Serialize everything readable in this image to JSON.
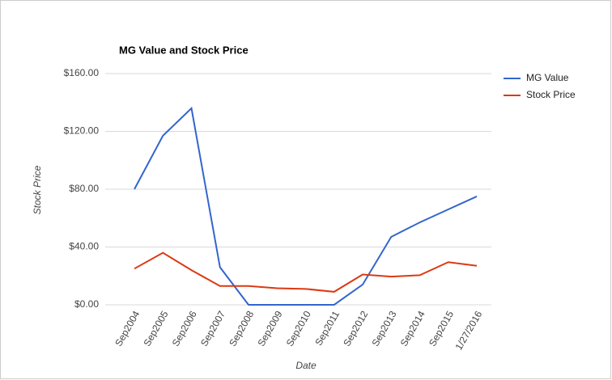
{
  "chart_data": {
    "type": "line",
    "title": "MG Value and Stock Price",
    "x_label": "Date",
    "y_label": "Stock Price",
    "categories": [
      "Sep2004",
      "Sep2005",
      "Sep2006",
      "Sep2007",
      "Sep2008",
      "Sep2009",
      "Sep2010",
      "Sep2011",
      "Sep2012",
      "Sep2013",
      "Sep2014",
      "Sep2015",
      "1/27/2016"
    ],
    "series": [
      {
        "name": "MG Value",
        "color": "#3366cc",
        "values": [
          80,
          117,
          136,
          26,
          0,
          0,
          0,
          0,
          14,
          47,
          57,
          66,
          75
        ]
      },
      {
        "name": "Stock Price",
        "color": "#dc3912",
        "values": [
          25,
          36,
          24,
          13,
          13,
          11.5,
          11,
          9,
          21,
          19.5,
          20.5,
          29.5,
          27
        ]
      }
    ],
    "ylim": [
      0,
      160
    ],
    "yticks": [
      {
        "value": 0,
        "label": "$0.00"
      },
      {
        "value": 40,
        "label": "$40.00"
      },
      {
        "value": 80,
        "label": "$80.00"
      },
      {
        "value": 120,
        "label": "$120.00"
      },
      {
        "value": 160,
        "label": "$160.00"
      }
    ],
    "grid": true,
    "legend": "right"
  }
}
